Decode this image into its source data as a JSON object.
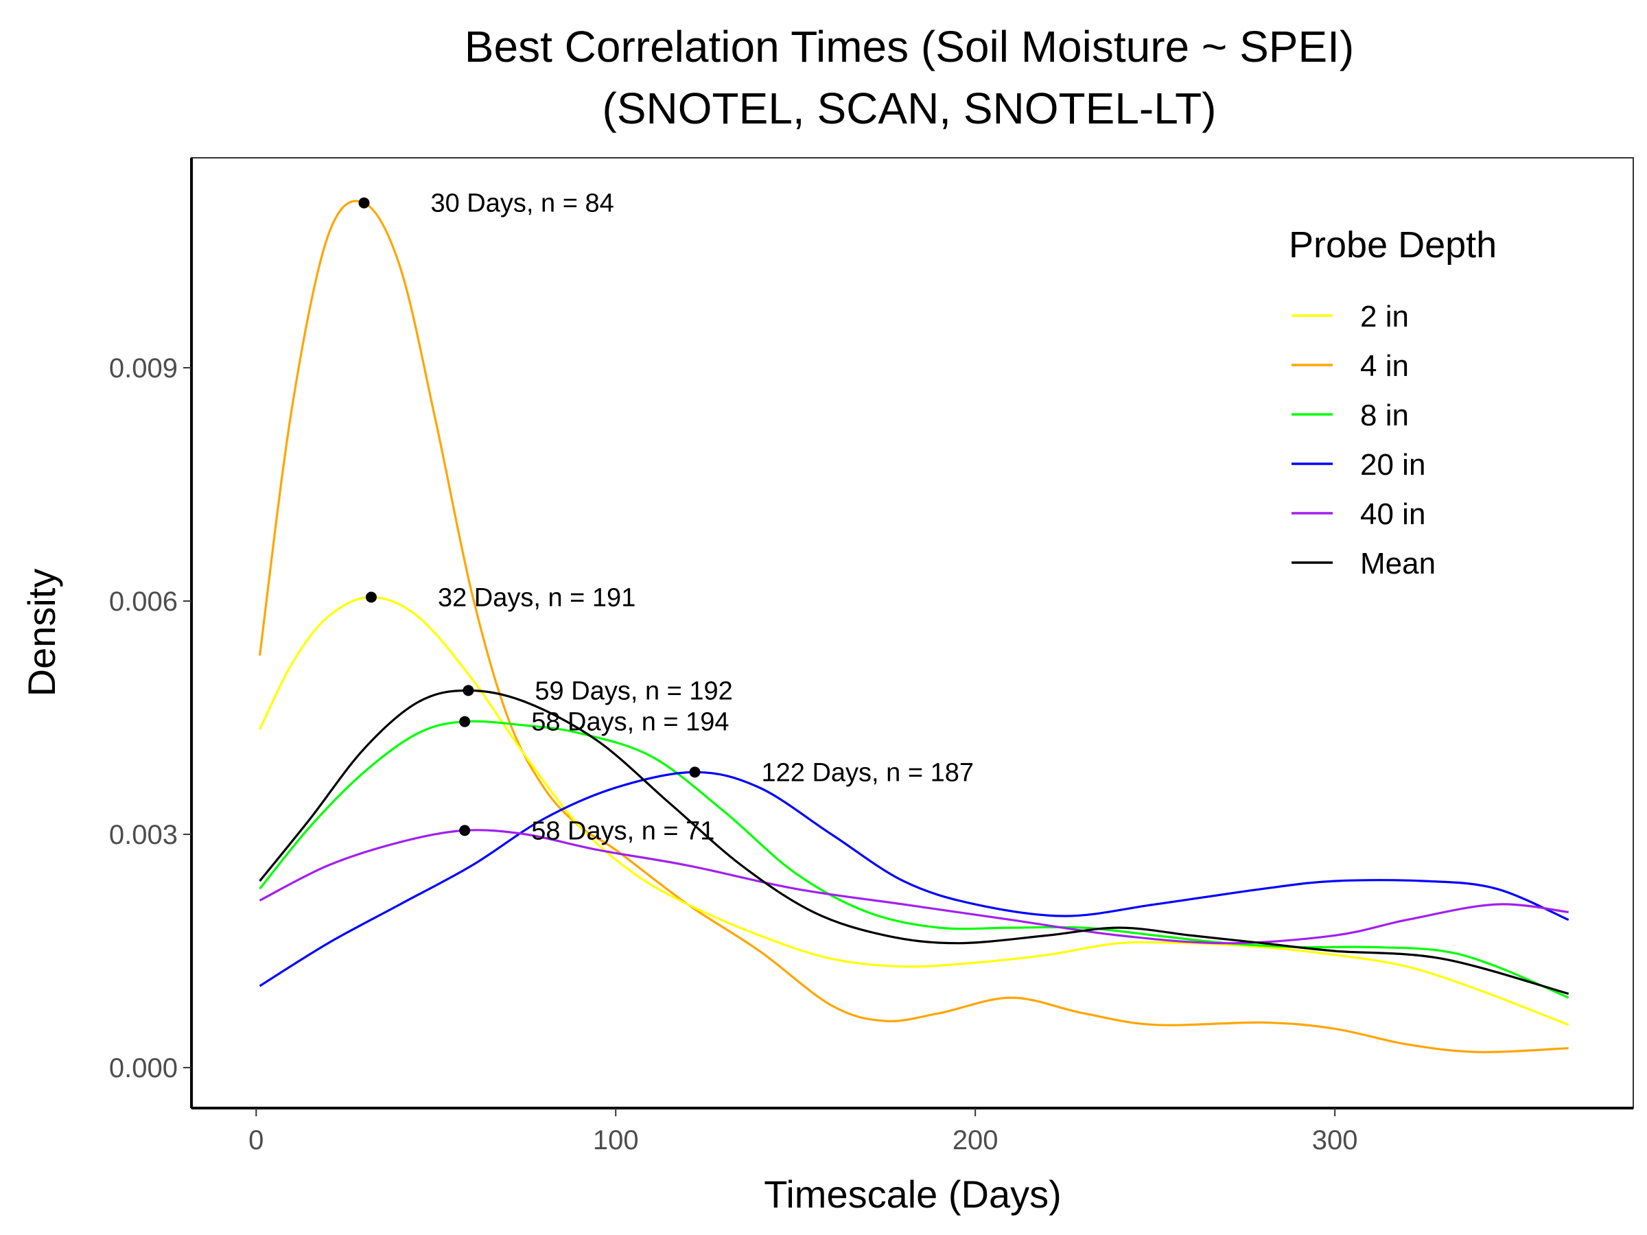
{
  "chart_data": {
    "type": "line",
    "title": "Best Correlation Times (Soil Moisture ~ SPEI)",
    "subtitle": "(SNOTEL, SCAN, SNOTEL-LT)",
    "xlabel": "Timescale (Days)",
    "ylabel": "Density",
    "xlim": [
      -18,
      383
    ],
    "ylim": [
      -0.00052,
      0.0117
    ],
    "x_ticks": [
      0,
      100,
      200,
      300
    ],
    "x_tick_labels": [
      "0",
      "100",
      "200",
      "300"
    ],
    "y_ticks": [
      0.0,
      0.003,
      0.006,
      0.009
    ],
    "y_tick_labels": [
      "0.000",
      "0.003",
      "0.006",
      "0.009"
    ],
    "grid": false,
    "legend": {
      "title": "Probe Depth",
      "position": "top-right"
    },
    "series": [
      {
        "name": "2 in",
        "color": "#ffff00",
        "x": [
          1,
          10,
          20,
          32,
          45,
          60,
          75,
          90,
          105,
          120,
          140,
          160,
          180,
          200,
          220,
          240,
          260,
          280,
          300,
          320,
          340,
          365
        ],
        "y": [
          0.00435,
          0.0052,
          0.0058,
          0.00605,
          0.0058,
          0.005,
          0.004,
          0.0031,
          0.0025,
          0.0021,
          0.0017,
          0.0014,
          0.0013,
          0.00135,
          0.00145,
          0.0016,
          0.0016,
          0.00155,
          0.00145,
          0.0013,
          0.001,
          0.00055
        ]
      },
      {
        "name": "4 in",
        "color": "#ffa500",
        "x": [
          1,
          10,
          20,
          30,
          40,
          50,
          60,
          70,
          80,
          90,
          100,
          120,
          140,
          160,
          175,
          190,
          210,
          230,
          250,
          280,
          300,
          320,
          340,
          365
        ],
        "y": [
          0.0053,
          0.0085,
          0.0107,
          0.01112,
          0.0103,
          0.0083,
          0.0061,
          0.0045,
          0.0036,
          0.0031,
          0.0028,
          0.0021,
          0.0015,
          0.0008,
          0.0006,
          0.0007,
          0.0009,
          0.0007,
          0.00055,
          0.00058,
          0.0005,
          0.0003,
          0.0002,
          0.00025
        ]
      },
      {
        "name": "8 in",
        "color": "#00ff00",
        "x": [
          1,
          15,
          30,
          45,
          58,
          75,
          90,
          110,
          130,
          150,
          170,
          190,
          210,
          230,
          250,
          270,
          290,
          310,
          330,
          345,
          365
        ],
        "y": [
          0.0023,
          0.0031,
          0.0038,
          0.0043,
          0.00445,
          0.0044,
          0.0043,
          0.004,
          0.0033,
          0.0025,
          0.002,
          0.0018,
          0.0018,
          0.0018,
          0.0017,
          0.0016,
          0.00155,
          0.00155,
          0.0015,
          0.0013,
          0.0009
        ]
      },
      {
        "name": "20 in",
        "color": "#0000ff",
        "x": [
          1,
          20,
          40,
          60,
          80,
          100,
          122,
          140,
          160,
          180,
          200,
          225,
          250,
          280,
          300,
          325,
          345,
          365
        ],
        "y": [
          0.00105,
          0.0016,
          0.0021,
          0.0026,
          0.0032,
          0.0036,
          0.0038,
          0.0036,
          0.003,
          0.0024,
          0.0021,
          0.00195,
          0.0021,
          0.0023,
          0.0024,
          0.0024,
          0.0023,
          0.0019
        ]
      },
      {
        "name": "40 in",
        "color": "#a020f0",
        "x": [
          1,
          20,
          40,
          58,
          75,
          95,
          120,
          150,
          180,
          210,
          240,
          270,
          300,
          320,
          345,
          365
        ],
        "y": [
          0.00215,
          0.0026,
          0.0029,
          0.00305,
          0.003,
          0.0028,
          0.0026,
          0.0023,
          0.0021,
          0.0019,
          0.0017,
          0.0016,
          0.0017,
          0.0019,
          0.0021,
          0.002
        ]
      },
      {
        "name": "Mean",
        "color": "#000000",
        "x": [
          1,
          15,
          30,
          45,
          59,
          75,
          95,
          115,
          135,
          155,
          175,
          195,
          220,
          240,
          260,
          280,
          300,
          330,
          365
        ],
        "y": [
          0.0024,
          0.0032,
          0.0041,
          0.0047,
          0.00485,
          0.0047,
          0.0042,
          0.0034,
          0.0026,
          0.002,
          0.0017,
          0.0016,
          0.0017,
          0.0018,
          0.0017,
          0.0016,
          0.0015,
          0.0014,
          0.00095
        ]
      }
    ],
    "peaks": [
      {
        "x": 30,
        "y": 0.01112,
        "label": "30 Days, n = 84"
      },
      {
        "x": 32,
        "y": 0.00605,
        "label": "32 Days, n = 191"
      },
      {
        "x": 59,
        "y": 0.00485,
        "label": "59 Days, n = 192"
      },
      {
        "x": 58,
        "y": 0.00445,
        "label": "58 Days, n = 194"
      },
      {
        "x": 122,
        "y": 0.0038,
        "label": "122 Days, n = 187"
      },
      {
        "x": 58,
        "y": 0.00305,
        "label": "58 Days, n = 71"
      }
    ]
  }
}
